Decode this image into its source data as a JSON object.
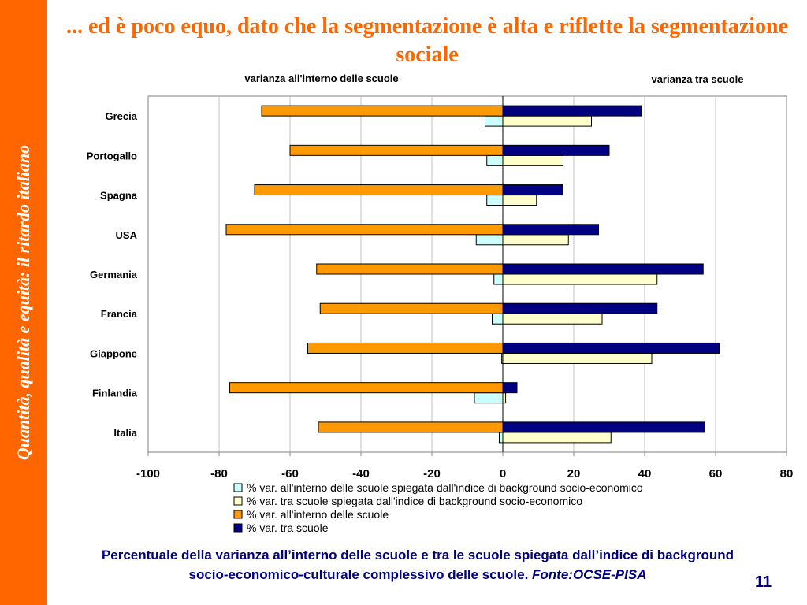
{
  "sidebar": {
    "text": "Quantità, qualità e equità: il ritardo italiano"
  },
  "title": "... ed è poco equo, dato che la segmentazione è alta e riflette la segmentazione sociale",
  "caption": {
    "text": "Percentuale della varianza all’interno delle scuole e tra le scuole spiegata dall’indice di background socio-economico-culturale complessivo delle scuole.",
    "source": "Fonte:OCSE-PISA"
  },
  "page_number": "11",
  "chart_data": {
    "type": "bar",
    "orientation": "horizontal",
    "annotations": [
      "varianza all'interno delle scuole",
      "varianza tra scuole"
    ],
    "categories": [
      "Grecia",
      "Portogallo",
      "Spagna",
      "USA",
      "Germania",
      "Francia",
      "Giappone",
      "Finlandia",
      "Italia"
    ],
    "xlim": [
      -100,
      80
    ],
    "xticks": [
      -100,
      -80,
      -60,
      -40,
      -20,
      0,
      20,
      40,
      60,
      80
    ],
    "xtick_labels": [
      "-100",
      "-80",
      "-60",
      "-40",
      "-20",
      "0",
      "20",
      "40",
      "60",
      "80"
    ],
    "grid": "vertical",
    "legend_position": "bottom",
    "series": [
      {
        "name": "% var. all'interno delle scuole spiegata dall'indice di background socio-economico",
        "color": "#ccffff",
        "values": [
          -5,
          -4.5,
          -4.5,
          -7.5,
          -2.5,
          -3,
          -0.3,
          -8,
          -1
        ]
      },
      {
        "name": "% var. tra scuole spiegata dall'indice di background socio-economico",
        "color": "#ffffcc",
        "values": [
          25,
          17,
          9.5,
          18.5,
          43.5,
          28,
          42,
          0.8,
          30.5
        ]
      },
      {
        "name": "% var. all'interno delle scuole",
        "color": "#ff9900",
        "values": [
          -68,
          -60,
          -70,
          -78,
          -52.5,
          -51.5,
          -55,
          -77,
          -52
        ]
      },
      {
        "name": "% var. tra scuole",
        "color": "#000080",
        "values": [
          39,
          30,
          17,
          27,
          56.5,
          43.5,
          61,
          4,
          57
        ]
      }
    ]
  }
}
